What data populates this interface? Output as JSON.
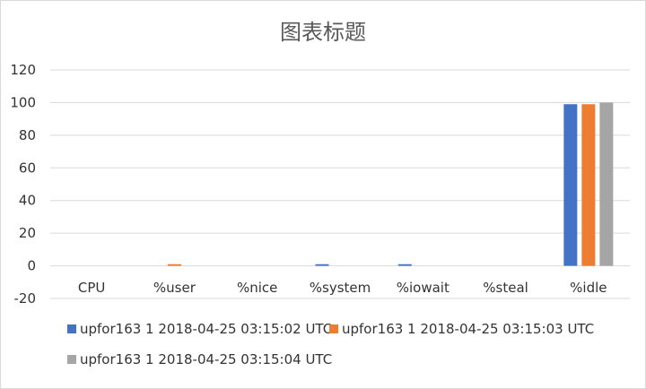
{
  "chart_data": {
    "type": "bar",
    "title": "图表标题",
    "categories": [
      "CPU",
      "%user",
      "%nice",
      "%system",
      "%iowait",
      "%steal",
      "%idle"
    ],
    "series": [
      {
        "name": "upfor163 1 2018-04-25 03:15:02 UTC",
        "color": "#4472c4",
        "values": [
          0,
          0,
          0,
          1,
          1,
          0,
          99
        ]
      },
      {
        "name": "upfor163 1 2018-04-25 03:15:03 UTC",
        "color": "#ed7d31",
        "values": [
          0,
          1,
          0,
          0,
          0,
          0,
          99
        ]
      },
      {
        "name": "upfor163 1 2018-04-25 03:15:04 UTC",
        "color": "#a5a5a5",
        "values": [
          0,
          0,
          0,
          0,
          0,
          0,
          100
        ]
      }
    ],
    "ylim": [
      -20,
      120
    ],
    "yticks": [
      120,
      100,
      80,
      60,
      40,
      20,
      0,
      -20
    ],
    "grid": true,
    "legend": "bottom"
  }
}
